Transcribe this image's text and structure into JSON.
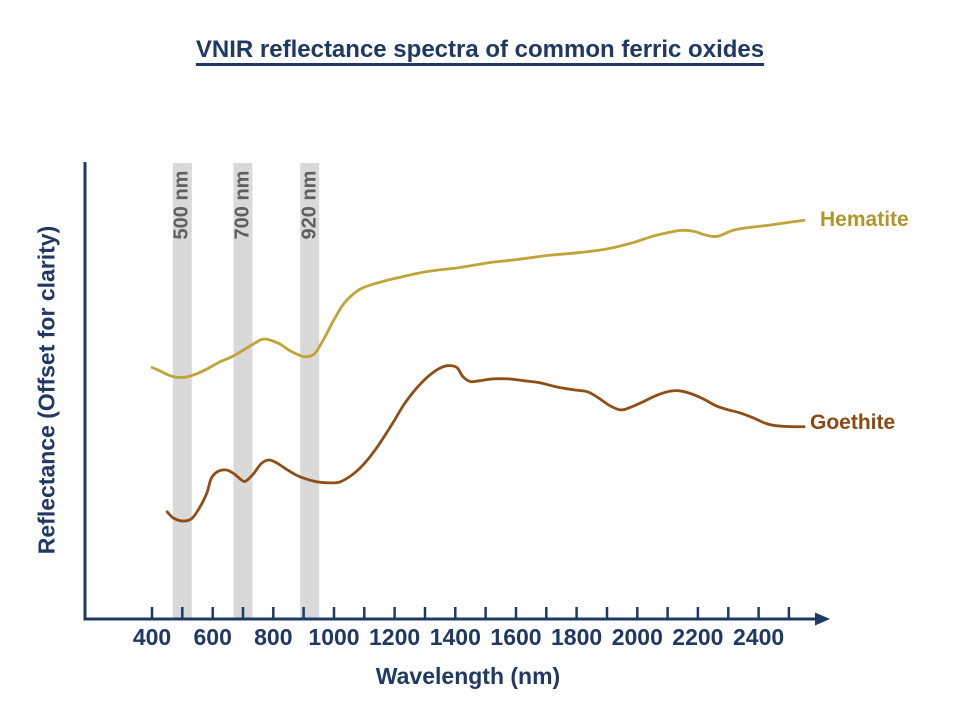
{
  "chart_data": {
    "type": "line",
    "title": "VNIR reflectance spectra of common ferric oxides",
    "xlabel": "Wavelength (nm)",
    "ylabel": "Reflectance (Offset for clarity)",
    "x_unit": "nm",
    "xlim": [
      300,
      2600
    ],
    "ylim": [
      0,
      100
    ],
    "y_axis_note": "no numeric y ticks; reflectance curves offset for clarity",
    "grid": false,
    "legend_position": "right-of-curve-ends",
    "x_ticks": [
      400,
      500,
      600,
      700,
      800,
      900,
      1000,
      1100,
      1200,
      1300,
      1400,
      1500,
      1600,
      1700,
      1800,
      1900,
      2000,
      2100,
      2200,
      2300,
      2400,
      2500
    ],
    "x_tick_labels": [
      "400",
      "600",
      "800",
      "1000",
      "1200",
      "1400",
      "1600",
      "1800",
      "2000",
      "2200",
      "2400"
    ],
    "bands": [
      {
        "wavelength_nm": 500,
        "label": "500 nm"
      },
      {
        "wavelength_nm": 700,
        "label": "700 nm"
      },
      {
        "wavelength_nm": 920,
        "label": "920 nm"
      }
    ],
    "colors": {
      "axis": "#1F3864",
      "title": "#1F3864",
      "band_fill": "#D9D9D9",
      "band_text": "#5f5f5f"
    },
    "series": [
      {
        "name": "Hematite",
        "color": "#C0A437",
        "label_color": "#B19729",
        "points": [
          [
            400,
            55.2
          ],
          [
            425,
            54.5
          ],
          [
            460,
            53.4
          ],
          [
            490,
            53.0
          ],
          [
            520,
            53.2
          ],
          [
            570,
            54.5
          ],
          [
            620,
            56.3
          ],
          [
            670,
            57.8
          ],
          [
            720,
            59.8
          ],
          [
            760,
            61.3
          ],
          [
            785,
            61.3
          ],
          [
            820,
            60.4
          ],
          [
            855,
            58.9
          ],
          [
            900,
            57.6
          ],
          [
            935,
            58.2
          ],
          [
            965,
            61.3
          ],
          [
            1000,
            65.7
          ],
          [
            1030,
            69.0
          ],
          [
            1065,
            71.4
          ],
          [
            1095,
            72.7
          ],
          [
            1145,
            73.8
          ],
          [
            1210,
            74.9
          ],
          [
            1310,
            76.3
          ],
          [
            1410,
            77.1
          ],
          [
            1510,
            78.2
          ],
          [
            1605,
            78.9
          ],
          [
            1705,
            79.8
          ],
          [
            1805,
            80.4
          ],
          [
            1905,
            81.3
          ],
          [
            1985,
            82.6
          ],
          [
            2050,
            84.0
          ],
          [
            2100,
            84.8
          ],
          [
            2145,
            85.3
          ],
          [
            2185,
            85.1
          ],
          [
            2230,
            84.2
          ],
          [
            2265,
            84.0
          ],
          [
            2315,
            85.3
          ],
          [
            2365,
            85.9
          ],
          [
            2430,
            86.4
          ],
          [
            2495,
            87.0
          ],
          [
            2550,
            87.5
          ]
        ]
      },
      {
        "name": "Goethite",
        "color": "#8F4E13",
        "label_color": "#8C4A10",
        "points": [
          [
            450,
            23.5
          ],
          [
            470,
            22.2
          ],
          [
            500,
            21.5
          ],
          [
            530,
            22.0
          ],
          [
            555,
            24.2
          ],
          [
            580,
            27.5
          ],
          [
            595,
            30.8
          ],
          [
            615,
            32.3
          ],
          [
            645,
            32.7
          ],
          [
            670,
            31.9
          ],
          [
            695,
            30.5
          ],
          [
            710,
            30.3
          ],
          [
            735,
            31.9
          ],
          [
            760,
            34.1
          ],
          [
            785,
            34.9
          ],
          [
            810,
            34.3
          ],
          [
            840,
            33.0
          ],
          [
            875,
            31.6
          ],
          [
            905,
            30.8
          ],
          [
            945,
            30.1
          ],
          [
            980,
            29.9
          ],
          [
            1020,
            30.1
          ],
          [
            1065,
            31.9
          ],
          [
            1105,
            34.5
          ],
          [
            1145,
            38.0
          ],
          [
            1190,
            42.6
          ],
          [
            1230,
            47.0
          ],
          [
            1270,
            50.5
          ],
          [
            1310,
            53.2
          ],
          [
            1345,
            54.9
          ],
          [
            1375,
            55.6
          ],
          [
            1405,
            55.2
          ],
          [
            1425,
            53.2
          ],
          [
            1450,
            52.1
          ],
          [
            1480,
            52.3
          ],
          [
            1525,
            52.7
          ],
          [
            1575,
            52.7
          ],
          [
            1625,
            52.3
          ],
          [
            1675,
            51.9
          ],
          [
            1730,
            51.0
          ],
          [
            1790,
            50.3
          ],
          [
            1835,
            49.9
          ],
          [
            1870,
            48.6
          ],
          [
            1910,
            46.8
          ],
          [
            1945,
            45.9
          ],
          [
            1975,
            46.4
          ],
          [
            2020,
            47.7
          ],
          [
            2060,
            49.0
          ],
          [
            2100,
            49.9
          ],
          [
            2135,
            50.1
          ],
          [
            2175,
            49.5
          ],
          [
            2215,
            48.4
          ],
          [
            2260,
            46.8
          ],
          [
            2300,
            45.9
          ],
          [
            2335,
            45.3
          ],
          [
            2380,
            44.2
          ],
          [
            2425,
            42.9
          ],
          [
            2460,
            42.4
          ],
          [
            2510,
            42.2
          ],
          [
            2550,
            42.2
          ]
        ]
      }
    ]
  }
}
